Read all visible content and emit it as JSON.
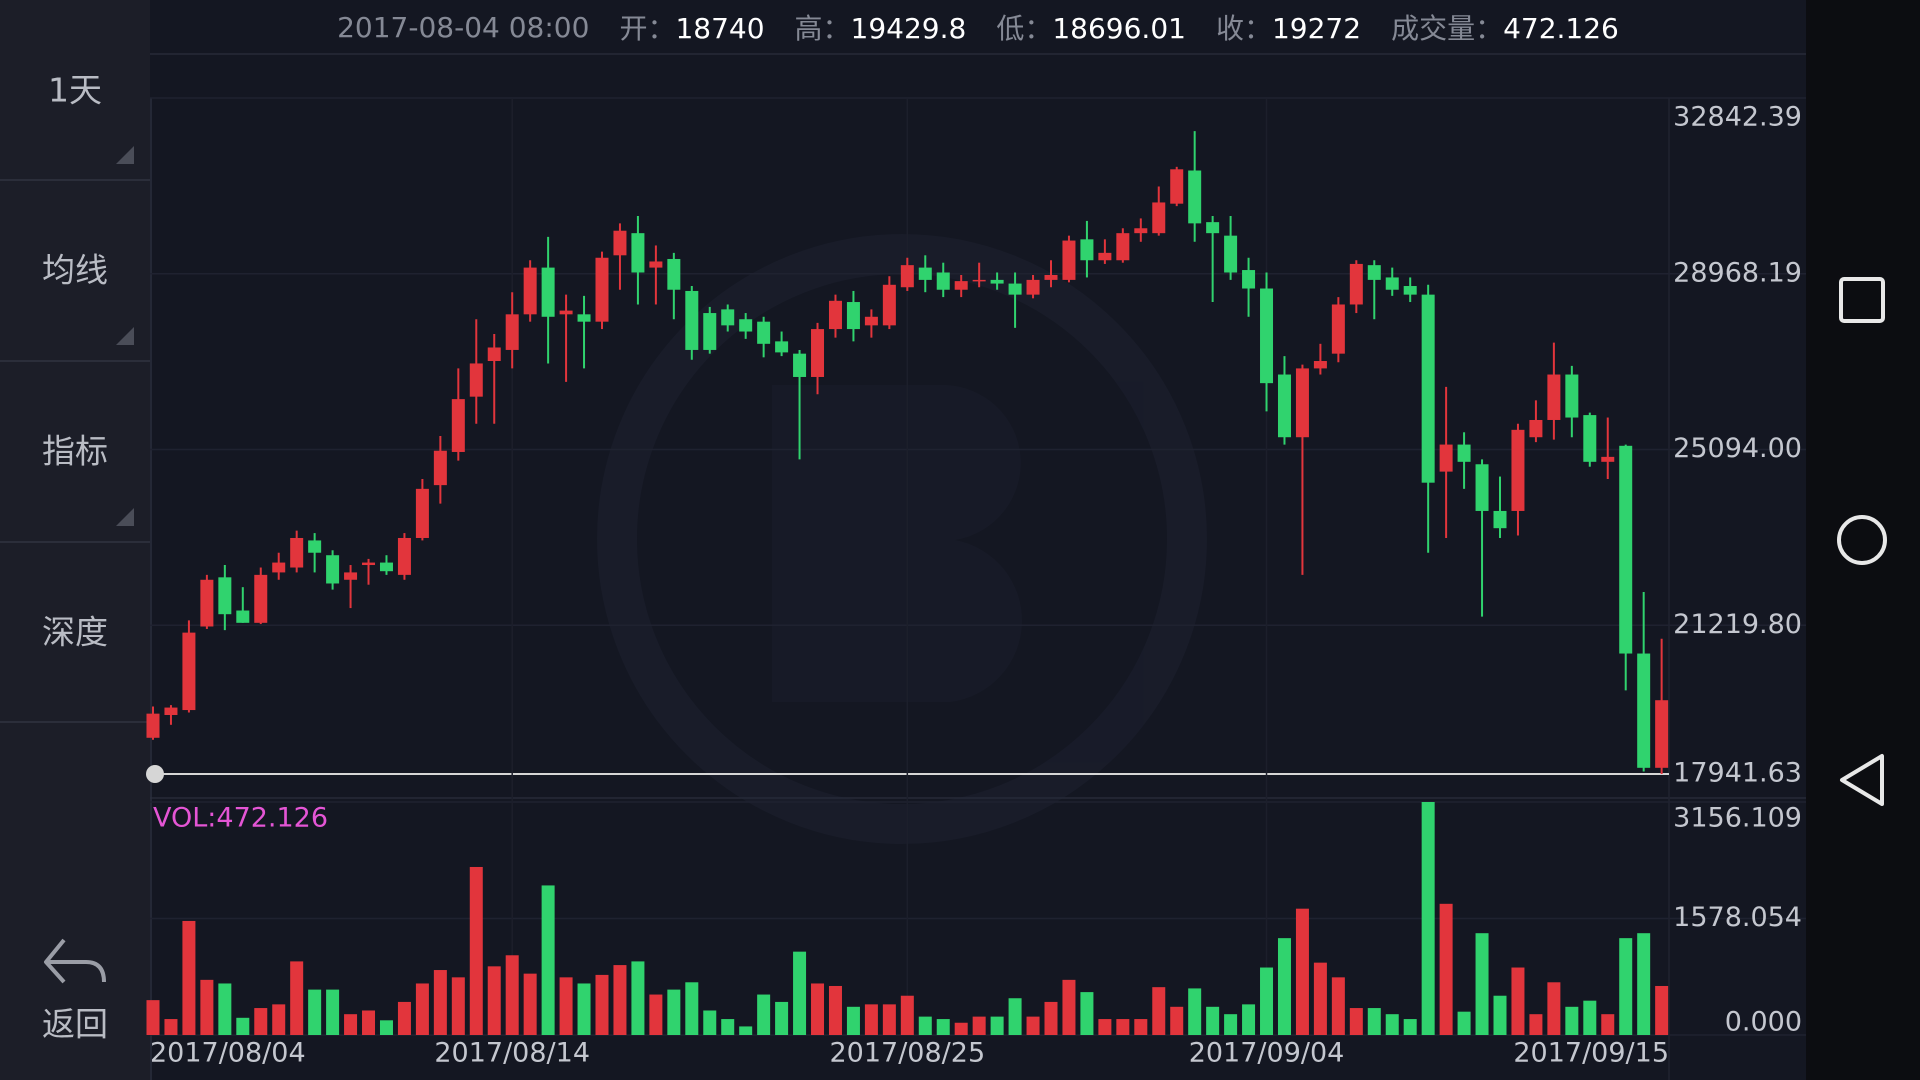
{
  "header": {
    "time": "2017-08-04 08:00",
    "fields": [
      {
        "label": "开：",
        "value": "18740"
      },
      {
        "label": "高：",
        "value": "19429.8"
      },
      {
        "label": "低：",
        "value": "18696.01"
      },
      {
        "label": "收：",
        "value": "19272"
      },
      {
        "label": "成交量：",
        "value": "472.126"
      }
    ]
  },
  "sidebar": {
    "items": [
      "1天",
      "均线",
      "指标",
      "深度"
    ],
    "back": "返回"
  },
  "chart_data": {
    "type": "candlestick",
    "categories": [
      "2017/08/04",
      null,
      null,
      null,
      null,
      null,
      null,
      null,
      null,
      null,
      null,
      null,
      null,
      null,
      null,
      null,
      null,
      null,
      null,
      null,
      "2017/08/14",
      null,
      null,
      null,
      null,
      null,
      null,
      null,
      null,
      null,
      null,
      null,
      null,
      null,
      null,
      null,
      null,
      null,
      null,
      null,
      null,
      null,
      "2017/08/25",
      null,
      null,
      null,
      null,
      null,
      null,
      null,
      null,
      null,
      null,
      null,
      null,
      null,
      null,
      null,
      null,
      null,
      null,
      null,
      "2017/09/04",
      null,
      null,
      null,
      null,
      null,
      null,
      null,
      null,
      null,
      null,
      null,
      null,
      null,
      null,
      null,
      null,
      null,
      null,
      null,
      null,
      null,
      "2017/09/15"
    ],
    "open": [
      18740,
      19242,
      19351,
      21193,
      22277,
      21545,
      21274,
      22385,
      22493,
      23090,
      22764,
      22223,
      22548,
      22602,
      22331,
      23144,
      24309,
      25040,
      26259,
      27045,
      27289,
      28074,
      29104,
      28074,
      28074,
      27912,
      29375,
      29863,
      29104,
      29294,
      28589,
      28102,
      28183,
      27966,
      27912,
      27478,
      27207,
      26693,
      27749,
      28345,
      27831,
      27831,
      28671,
      29104,
      28996,
      28616,
      28806,
      28833,
      28752,
      28508,
      28833,
      28833,
      29727,
      29266,
      29266,
      29863,
      29863,
      30513,
      31244,
      30106,
      29808,
      29050,
      28643,
      26747,
      25365,
      26882,
      27207,
      28291,
      29158,
      28887,
      28698,
      28508,
      24607,
      25203,
      24769,
      23740,
      23740,
      25365,
      25745,
      26747,
      25853,
      24823,
      25176,
      20597,
      18078
    ],
    "high": [
      19429.8,
      19460,
      21329,
      22331,
      22548,
      22060,
      22493,
      22819,
      23306,
      23252,
      22873,
      22548,
      22683,
      22764,
      23252,
      24444,
      25392,
      26882,
      27966,
      27641,
      28562,
      29266,
      29781,
      28508,
      28481,
      29456,
      30079,
      30242,
      29592,
      29429,
      28698,
      28237,
      28291,
      28102,
      28020,
      27695,
      27289,
      27885,
      28508,
      28589,
      28183,
      28914,
      29321,
      29375,
      29212,
      28941,
      29212,
      28996,
      28996,
      28941,
      29266,
      29808,
      30133,
      29727,
      29971,
      30188,
      30892,
      31325,
      32111,
      30242,
      30242,
      29321,
      28996,
      27153,
      26964,
      27424,
      28454,
      29266,
      29266,
      29104,
      28887,
      28725,
      26476,
      25474,
      24878,
      24498,
      25663,
      26178,
      27451,
      26937,
      25907,
      25799,
      25203,
      21952,
      20922
    ],
    "low": [
      18696.01,
      19026,
      19297,
      21139,
      21112,
      21274,
      21247,
      22223,
      22385,
      22385,
      22006,
      21599,
      22114,
      22331,
      22223,
      23090,
      23902,
      24850,
      25663,
      25663,
      26882,
      27912,
      26991,
      26584,
      26882,
      27749,
      28616,
      28291,
      28291,
      27966,
      27072,
      27207,
      27695,
      27533,
      27126,
      27153,
      24878,
      26313,
      27560,
      27478,
      27560,
      27749,
      28589,
      28562,
      28454,
      28454,
      28671,
      28616,
      27776,
      28427,
      28671,
      28779,
      28887,
      29185,
      29212,
      29673,
      29808,
      30459,
      29673,
      28345,
      28833,
      28020,
      25934,
      25203,
      22331,
      26747,
      27018,
      28102,
      27966,
      28481,
      28345,
      22819,
      23144,
      24227,
      21410,
      23144,
      23198,
      25257,
      25311,
      25365,
      24715,
      24444,
      19784,
      17996,
      17941.63
    ],
    "close": [
      19272,
      19406,
      21058,
      22223,
      21464,
      21274,
      22331,
      22602,
      23144,
      22819,
      22141,
      22385,
      22602,
      22412,
      23144,
      24227,
      25067,
      26205,
      26991,
      27343,
      28074,
      29104,
      28020,
      28156,
      27912,
      29321,
      29917,
      28996,
      29239,
      28616,
      27289,
      27289,
      27831,
      27695,
      27424,
      27235,
      26693,
      27749,
      28372,
      27749,
      28020,
      28725,
      29158,
      28833,
      28616,
      28806,
      28833,
      28752,
      28508,
      28833,
      28941,
      29700,
      29266,
      29429,
      29863,
      29971,
      30540,
      31271,
      30079,
      29863,
      28996,
      28643,
      26557,
      25365,
      26882,
      27045,
      28291,
      29185,
      28833,
      28616,
      28508,
      24363,
      25203,
      24823,
      23740,
      23360,
      25528,
      25745,
      26747,
      25799,
      24823,
      24932,
      20597,
      18078,
      19568
    ],
    "up_color": "#e2353c",
    "down_color": "#30d36e",
    "ylim": [
      17941.63,
      32842.39
    ],
    "yticks": [
      32842.39,
      28968.19,
      {
        "value": 25094,
        "label": "25094.00"
      },
      {
        "value": 21219.8,
        "label": "21219.80"
      },
      17941.63
    ],
    "grid": true,
    "volume": {
      "label": "VOL:472.126",
      "label_color": "#e455d5",
      "values": [
        472.126,
        216,
        1545,
        747,
        698,
        233,
        365,
        415,
        997,
        615,
        615,
        282,
        332,
        199,
        448,
        698,
        880,
        781,
        2276,
        930,
        1080,
        831,
        2026,
        781,
        698,
        814,
        947,
        997,
        548,
        615,
        714,
        332,
        216,
        116,
        548,
        448,
        1129,
        698,
        664,
        382,
        415,
        415,
        532,
        249,
        216,
        166,
        249,
        249,
        498,
        249,
        448,
        747,
        581,
        216,
        216,
        216,
        648,
        382,
        631,
        382,
        282,
        415,
        914,
        1312,
        1711,
        980,
        781,
        365,
        365,
        282,
        216,
        3156.109,
        1777,
        316,
        1379,
        532,
        914,
        282,
        714,
        382,
        465,
        282,
        1312,
        1379,
        664
      ],
      "ylim": [
        0,
        3156.109
      ],
      "yticks": [
        {
          "value": 0,
          "label": "0.000"
        },
        1578.054,
        3156.109
      ]
    }
  }
}
